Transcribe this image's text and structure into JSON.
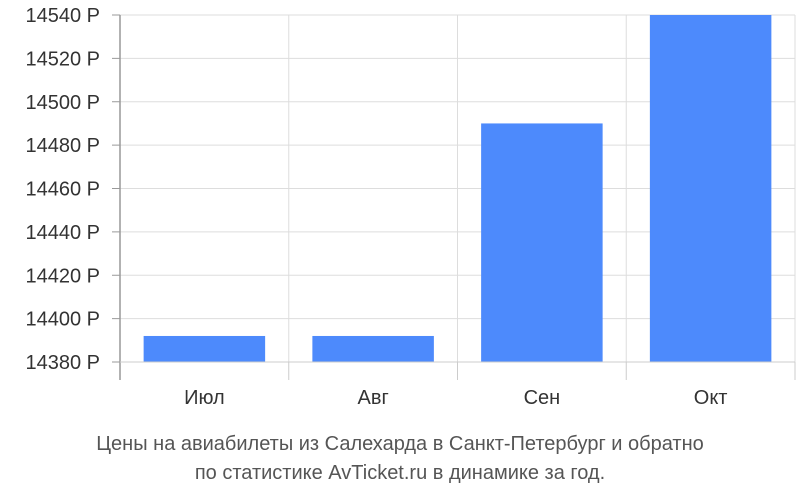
{
  "chart_data": {
    "type": "bar",
    "categories": [
      "Июл",
      "Авг",
      "Сен",
      "Окт"
    ],
    "values": [
      14392,
      14392,
      14490,
      14540
    ],
    "ylim": [
      14380,
      14540
    ],
    "yticks": [
      14380,
      14400,
      14420,
      14440,
      14460,
      14480,
      14500,
      14520,
      14540
    ],
    "y_unit": "Р",
    "grid": true,
    "bar_color": "#4d8afc",
    "title": ""
  },
  "caption": {
    "line1": "Цены на авиабилеты из Салехарда в Санкт-Петербург и обратно",
    "line2": "по статистике AvTicket.ru в динамике за год."
  }
}
